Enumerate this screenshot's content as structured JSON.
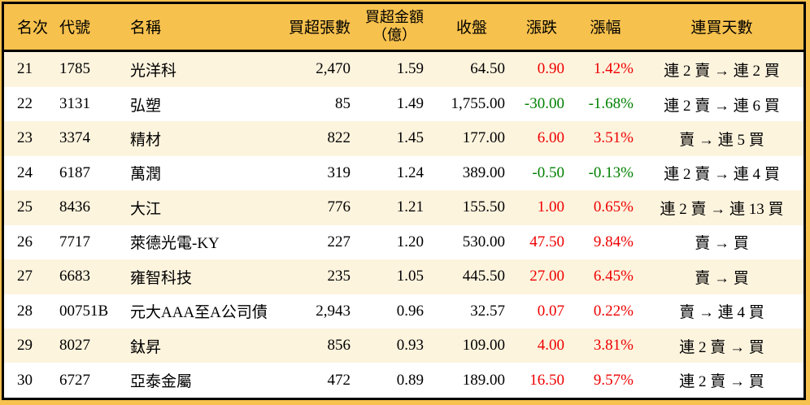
{
  "colors": {
    "page_bg": "#F7C14D",
    "header_bg": "#F7C14D",
    "stripe_bg": "#FDF4DE",
    "row_bg": "#FFFFFF",
    "border": "#000000",
    "text": "#000000",
    "up": "#EE0000",
    "down": "#008000"
  },
  "header": {
    "rank": "名次",
    "code": "代號",
    "name": "名稱",
    "volume": "買超張數",
    "amount_line1": "買超金額",
    "amount_line2": "（億）",
    "close": "收盤",
    "change": "漲跌",
    "change_pct": "漲幅",
    "streak": "連買天數"
  },
  "chart_data": {
    "type": "table",
    "columns": [
      "名次",
      "代號",
      "名稱",
      "買超張數",
      "買超金額（億）",
      "收盤",
      "漲跌",
      "漲幅",
      "連買天數"
    ],
    "rows": [
      {
        "rank": "21",
        "code": "1785",
        "name": "光洋科",
        "volume": "2,470",
        "amount": "1.59",
        "close": "64.50",
        "change": "0.90",
        "change_pct": "1.42%",
        "direction": "up",
        "streak": "連 2 賣 → 連 2 買"
      },
      {
        "rank": "22",
        "code": "3131",
        "name": "弘塑",
        "volume": "85",
        "amount": "1.49",
        "close": "1,755.00",
        "change": "-30.00",
        "change_pct": "-1.68%",
        "direction": "down",
        "streak": "連 2 賣 → 連 6 買"
      },
      {
        "rank": "23",
        "code": "3374",
        "name": "精材",
        "volume": "822",
        "amount": "1.45",
        "close": "177.00",
        "change": "6.00",
        "change_pct": "3.51%",
        "direction": "up",
        "streak": "賣 → 連 5 買"
      },
      {
        "rank": "24",
        "code": "6187",
        "name": "萬潤",
        "volume": "319",
        "amount": "1.24",
        "close": "389.00",
        "change": "-0.50",
        "change_pct": "-0.13%",
        "direction": "down",
        "streak": "連 2 賣 → 連 4 買"
      },
      {
        "rank": "25",
        "code": "8436",
        "name": "大江",
        "volume": "776",
        "amount": "1.21",
        "close": "155.50",
        "change": "1.00",
        "change_pct": "0.65%",
        "direction": "up",
        "streak": "連 2 賣 → 連 13 買"
      },
      {
        "rank": "26",
        "code": "7717",
        "name": "萊德光電-KY",
        "volume": "227",
        "amount": "1.20",
        "close": "530.00",
        "change": "47.50",
        "change_pct": "9.84%",
        "direction": "up",
        "streak": "賣 → 買"
      },
      {
        "rank": "27",
        "code": "6683",
        "name": "雍智科技",
        "volume": "235",
        "amount": "1.05",
        "close": "445.50",
        "change": "27.00",
        "change_pct": "6.45%",
        "direction": "up",
        "streak": "賣 → 買"
      },
      {
        "rank": "28",
        "code": "00751B",
        "name": "元大AAA至A公司債",
        "volume": "2,943",
        "amount": "0.96",
        "close": "32.57",
        "change": "0.07",
        "change_pct": "0.22%",
        "direction": "up",
        "streak": "賣 → 連 4 買"
      },
      {
        "rank": "29",
        "code": "8027",
        "name": "鈦昇",
        "volume": "856",
        "amount": "0.93",
        "close": "109.00",
        "change": "4.00",
        "change_pct": "3.81%",
        "direction": "up",
        "streak": "連 2 賣 → 買"
      },
      {
        "rank": "30",
        "code": "6727",
        "name": "亞泰金屬",
        "volume": "472",
        "amount": "0.89",
        "close": "189.00",
        "change": "16.50",
        "change_pct": "9.57%",
        "direction": "up",
        "streak": "連 2 賣 → 買"
      }
    ]
  }
}
